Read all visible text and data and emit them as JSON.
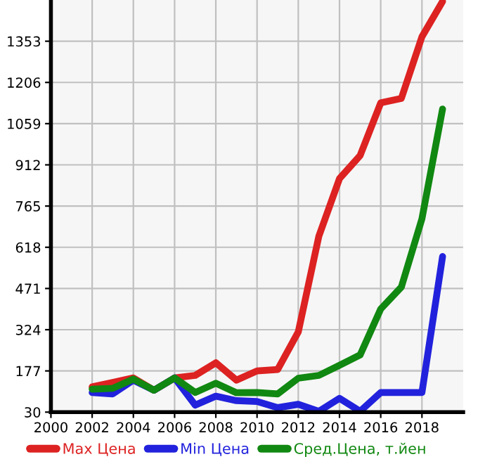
{
  "chart_data": {
    "type": "line",
    "x": [
      2002,
      2003,
      2004,
      2005,
      2006,
      2007,
      2008,
      2009,
      2010,
      2011,
      2012,
      2013,
      2014,
      2015,
      2016,
      2017,
      2018,
      2019
    ],
    "series": [
      {
        "name": "Max Цена",
        "color": "#dd2222",
        "values": [
          120,
          136,
          152,
          108,
          152,
          161,
          206,
          144,
          177,
          182,
          316,
          658,
          863,
          945,
          1133,
          1149,
          1369,
          1495
        ]
      },
      {
        "name": "Min Цена",
        "color": "#2222dd",
        "values": [
          100,
          95,
          144,
          108,
          152,
          55,
          87,
          71,
          68,
          46,
          58,
          33,
          79,
          33,
          100,
          100,
          100,
          585
        ]
      },
      {
        "name": "Сред.Цена, т.йен",
        "color": "#118811",
        "values": [
          112,
          115,
          148,
          108,
          152,
          100,
          133,
          99,
          100,
          95,
          151,
          161,
          197,
          234,
          398,
          476,
          720,
          1111
        ]
      }
    ],
    "xlim": [
      2000,
      2020
    ],
    "xticks": [
      2000,
      2002,
      2004,
      2006,
      2008,
      2010,
      2012,
      2014,
      2016,
      2018
    ],
    "ylim": [
      30,
      1500
    ],
    "yticks": [
      30,
      177,
      324,
      471,
      618,
      765,
      912,
      1059,
      1206,
      1353
    ],
    "grid": true,
    "legend": "bottom",
    "marker": "none",
    "line_style": "solid"
  }
}
